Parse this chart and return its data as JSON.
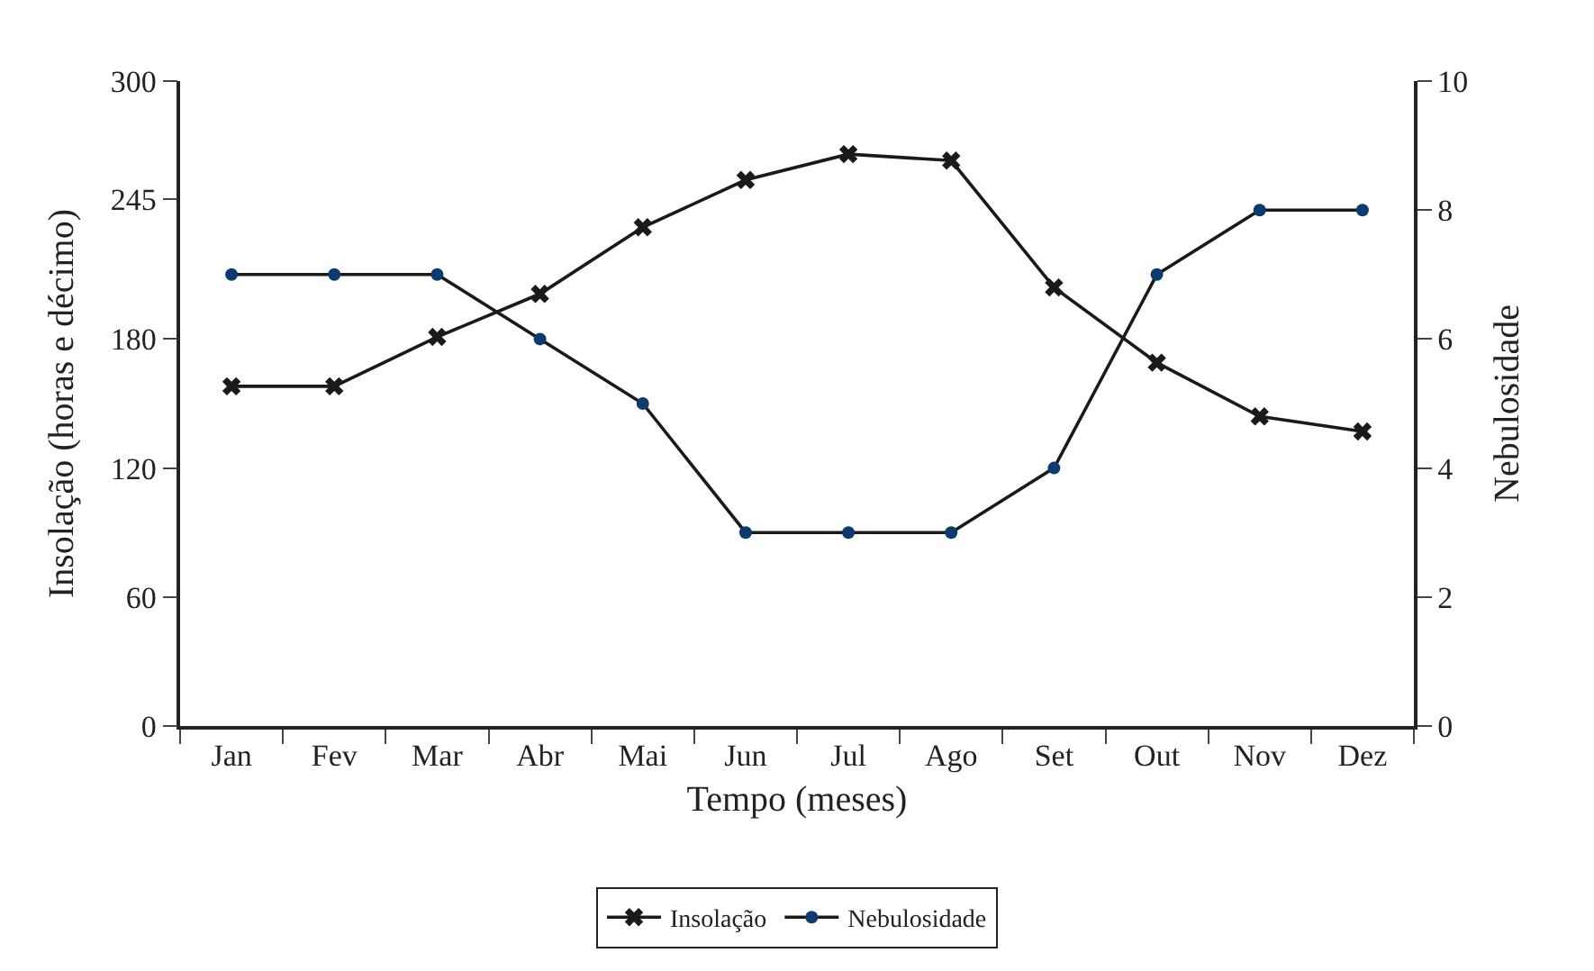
{
  "chart_data": {
    "type": "line",
    "xlabel": "Tempo (meses)",
    "ylabel": "Insolação (horas e décimo)",
    "y2label": "Nebulosidade",
    "categories": [
      "Jan",
      "Fev",
      "Mar",
      "Abr",
      "Mai",
      "Jun",
      "Jul",
      "Ago",
      "Set",
      "Out",
      "Nov",
      "Dez"
    ],
    "series": [
      {
        "name": "Insolação",
        "color": "#1a1a1a",
        "marker": "cross",
        "values": [
          158,
          158,
          181,
          201,
          232,
          254,
          266,
          263,
          204,
          169,
          144,
          137
        ]
      },
      {
        "name": "Nebulosidade",
        "color": "#0d3b6e",
        "marker": "circle",
        "axis": "y2",
        "values": [
          7,
          7,
          7,
          6,
          5,
          3,
          3,
          3,
          4,
          7,
          8,
          8
        ]
      }
    ],
    "ylim": [
      0,
      300
    ],
    "yticks": [
      0,
      60,
      120,
      180,
      245,
      300
    ],
    "y2lim": [
      0,
      10
    ],
    "y2ticks": [
      0,
      2,
      4,
      6,
      8,
      10
    ],
    "legend": "bottom",
    "line_style": "solid"
  }
}
